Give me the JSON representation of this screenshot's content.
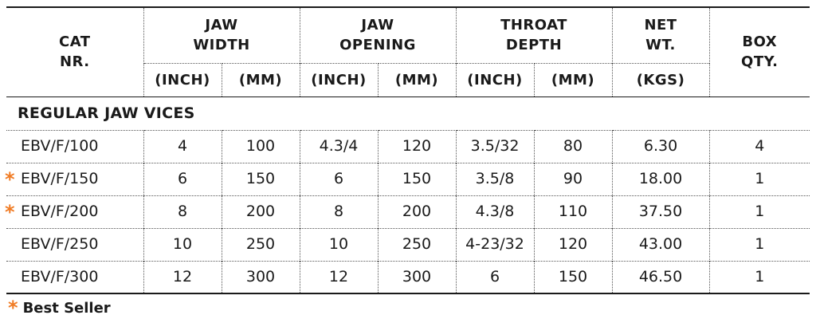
{
  "header": {
    "cat_nr": [
      "CAT",
      "NR."
    ],
    "jaw_width": [
      "JAW",
      "WIDTH"
    ],
    "jaw_opening": [
      "JAW",
      "OPENING"
    ],
    "throat_depth": [
      "THROAT",
      "DEPTH"
    ],
    "net_wt": [
      "NET",
      "WT."
    ],
    "box_qty": [
      "BOX",
      "QTY."
    ],
    "units": [
      "(INCH)",
      "(MM)",
      "(INCH)",
      "(MM)",
      "(INCH)",
      "(MM)",
      "(KGS)"
    ]
  },
  "section": {
    "label": "REGULAR JAW VICES"
  },
  "rows": [
    {
      "cat": "EBV/F/100",
      "best_seller": false,
      "cells": [
        "4",
        "100",
        "4.3/4",
        "120",
        "3.5/32",
        "80",
        "6.30",
        "4"
      ]
    },
    {
      "cat": "EBV/F/150",
      "best_seller": true,
      "cells": [
        "6",
        "150",
        "6",
        "150",
        "3.5/8",
        "90",
        "18.00",
        "1"
      ]
    },
    {
      "cat": "EBV/F/200",
      "best_seller": true,
      "cells": [
        "8",
        "200",
        "8",
        "200",
        "4.3/8",
        "110",
        "37.50",
        "1"
      ]
    },
    {
      "cat": "EBV/F/250",
      "best_seller": false,
      "cells": [
        "10",
        "250",
        "10",
        "250",
        "4-23/32",
        "120",
        "43.00",
        "1"
      ]
    },
    {
      "cat": "EBV/F/300",
      "best_seller": false,
      "cells": [
        "12",
        "300",
        "12",
        "300",
        "6",
        "150",
        "46.50",
        "1"
      ]
    }
  ],
  "legend": {
    "star": "*",
    "label": "Best Seller"
  },
  "colors": {
    "accent_star": "#f07b24",
    "text": "#1a1a1a"
  }
}
